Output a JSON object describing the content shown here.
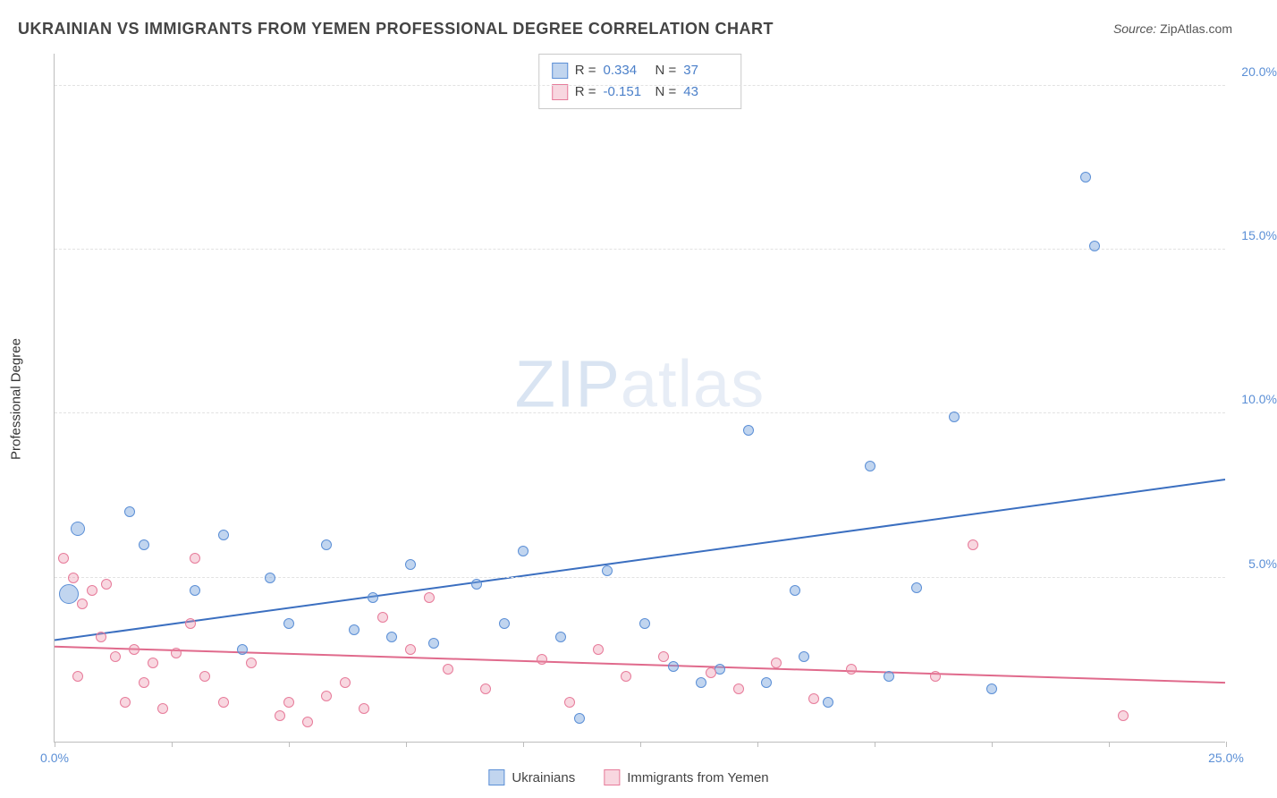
{
  "title": "UKRAINIAN VS IMMIGRANTS FROM YEMEN PROFESSIONAL DEGREE CORRELATION CHART",
  "source_label": "Source:",
  "source_value": "ZipAtlas.com",
  "ylabel": "Professional Degree",
  "watermark_a": "ZIP",
  "watermark_b": "atlas",
  "chart": {
    "type": "scatter",
    "xlim": [
      0,
      25
    ],
    "ylim": [
      0,
      21
    ],
    "yticks": [
      5,
      10,
      15,
      20
    ],
    "ytick_labels": [
      "5.0%",
      "10.0%",
      "15.0%",
      "20.0%"
    ],
    "xticks": [
      0,
      2.5,
      5,
      7.5,
      10,
      12.5,
      15,
      17.5,
      20,
      22.5,
      25
    ],
    "xtick_labels": {
      "0": "0.0%",
      "25": "25.0%"
    },
    "series": [
      {
        "name": "Ukrainians",
        "color_key": "blue",
        "r_label": "R =",
        "r_value": "0.334",
        "n_label": "N =",
        "n_value": "37",
        "trend": {
          "y0": 3.1,
          "y1": 8.0,
          "stroke": "#3b6fc0",
          "width": 2
        },
        "points": [
          {
            "x": 0.3,
            "y": 4.5,
            "s": 22
          },
          {
            "x": 0.5,
            "y": 6.5,
            "s": 16
          },
          {
            "x": 1.6,
            "y": 7.0,
            "s": 12
          },
          {
            "x": 1.9,
            "y": 6.0,
            "s": 12
          },
          {
            "x": 3.6,
            "y": 6.3,
            "s": 12
          },
          {
            "x": 3.0,
            "y": 4.6,
            "s": 12
          },
          {
            "x": 4.6,
            "y": 5.0,
            "s": 12
          },
          {
            "x": 5.0,
            "y": 3.6,
            "s": 12
          },
          {
            "x": 5.8,
            "y": 6.0,
            "s": 12
          },
          {
            "x": 6.4,
            "y": 3.4,
            "s": 12
          },
          {
            "x": 6.8,
            "y": 4.4,
            "s": 12
          },
          {
            "x": 7.2,
            "y": 3.2,
            "s": 12
          },
          {
            "x": 7.6,
            "y": 5.4,
            "s": 12
          },
          {
            "x": 8.1,
            "y": 3.0,
            "s": 12
          },
          {
            "x": 9.0,
            "y": 4.8,
            "s": 12
          },
          {
            "x": 9.6,
            "y": 3.6,
            "s": 12
          },
          {
            "x": 10.0,
            "y": 5.8,
            "s": 12
          },
          {
            "x": 10.8,
            "y": 3.2,
            "s": 12
          },
          {
            "x": 11.2,
            "y": 0.7,
            "s": 12
          },
          {
            "x": 11.8,
            "y": 5.2,
            "s": 12
          },
          {
            "x": 12.6,
            "y": 3.6,
            "s": 12
          },
          {
            "x": 13.2,
            "y": 2.3,
            "s": 12
          },
          {
            "x": 13.8,
            "y": 1.8,
            "s": 12
          },
          {
            "x": 14.2,
            "y": 2.2,
            "s": 12
          },
          {
            "x": 14.8,
            "y": 9.5,
            "s": 12
          },
          {
            "x": 15.2,
            "y": 1.8,
            "s": 12
          },
          {
            "x": 15.8,
            "y": 4.6,
            "s": 12
          },
          {
            "x": 16.5,
            "y": 1.2,
            "s": 12
          },
          {
            "x": 17.4,
            "y": 8.4,
            "s": 12
          },
          {
            "x": 17.8,
            "y": 2.0,
            "s": 12
          },
          {
            "x": 18.4,
            "y": 4.7,
            "s": 12
          },
          {
            "x": 19.2,
            "y": 9.9,
            "s": 12
          },
          {
            "x": 20.0,
            "y": 1.6,
            "s": 12
          },
          {
            "x": 22.0,
            "y": 17.2,
            "s": 12
          },
          {
            "x": 22.2,
            "y": 15.1,
            "s": 12
          },
          {
            "x": 16.0,
            "y": 2.6,
            "s": 12
          },
          {
            "x": 4.0,
            "y": 2.8,
            "s": 12
          }
        ]
      },
      {
        "name": "Immigrants from Yemen",
        "color_key": "pink",
        "r_label": "R =",
        "r_value": "-0.151",
        "n_label": "N =",
        "n_value": "43",
        "trend": {
          "y0": 2.9,
          "y1": 1.8,
          "stroke": "#e06a8c",
          "width": 2
        },
        "points": [
          {
            "x": 0.2,
            "y": 5.6,
            "s": 12
          },
          {
            "x": 0.4,
            "y": 5.0,
            "s": 12
          },
          {
            "x": 0.6,
            "y": 4.2,
            "s": 12
          },
          {
            "x": 0.8,
            "y": 4.6,
            "s": 12
          },
          {
            "x": 1.0,
            "y": 3.2,
            "s": 12
          },
          {
            "x": 1.1,
            "y": 4.8,
            "s": 12
          },
          {
            "x": 1.3,
            "y": 2.6,
            "s": 12
          },
          {
            "x": 1.5,
            "y": 1.2,
            "s": 12
          },
          {
            "x": 1.7,
            "y": 2.8,
            "s": 12
          },
          {
            "x": 1.9,
            "y": 1.8,
            "s": 12
          },
          {
            "x": 2.1,
            "y": 2.4,
            "s": 12
          },
          {
            "x": 2.3,
            "y": 1.0,
            "s": 12
          },
          {
            "x": 2.6,
            "y": 2.7,
            "s": 12
          },
          {
            "x": 3.0,
            "y": 5.6,
            "s": 12
          },
          {
            "x": 3.2,
            "y": 2.0,
            "s": 12
          },
          {
            "x": 3.6,
            "y": 1.2,
            "s": 12
          },
          {
            "x": 4.2,
            "y": 2.4,
            "s": 12
          },
          {
            "x": 4.8,
            "y": 0.8,
            "s": 12
          },
          {
            "x": 5.0,
            "y": 1.2,
            "s": 12
          },
          {
            "x": 5.4,
            "y": 0.6,
            "s": 12
          },
          {
            "x": 5.8,
            "y": 1.4,
            "s": 12
          },
          {
            "x": 6.2,
            "y": 1.8,
            "s": 12
          },
          {
            "x": 6.6,
            "y": 1.0,
            "s": 12
          },
          {
            "x": 7.0,
            "y": 3.8,
            "s": 12
          },
          {
            "x": 7.6,
            "y": 2.8,
            "s": 12
          },
          {
            "x": 8.0,
            "y": 4.4,
            "s": 12
          },
          {
            "x": 8.4,
            "y": 2.2,
            "s": 12
          },
          {
            "x": 9.2,
            "y": 1.6,
            "s": 12
          },
          {
            "x": 10.4,
            "y": 2.5,
            "s": 12
          },
          {
            "x": 11.0,
            "y": 1.2,
            "s": 12
          },
          {
            "x": 11.6,
            "y": 2.8,
            "s": 12
          },
          {
            "x": 12.2,
            "y": 2.0,
            "s": 12
          },
          {
            "x": 13.0,
            "y": 2.6,
            "s": 12
          },
          {
            "x": 14.0,
            "y": 2.1,
            "s": 12
          },
          {
            "x": 14.6,
            "y": 1.6,
            "s": 12
          },
          {
            "x": 15.4,
            "y": 2.4,
            "s": 12
          },
          {
            "x": 16.2,
            "y": 1.3,
            "s": 12
          },
          {
            "x": 17.0,
            "y": 2.2,
            "s": 12
          },
          {
            "x": 18.8,
            "y": 2.0,
            "s": 12
          },
          {
            "x": 19.6,
            "y": 6.0,
            "s": 12
          },
          {
            "x": 22.8,
            "y": 0.8,
            "s": 12
          },
          {
            "x": 2.9,
            "y": 3.6,
            "s": 12
          },
          {
            "x": 0.5,
            "y": 2.0,
            "s": 12
          }
        ]
      }
    ]
  },
  "colors": {
    "blue_fill": "rgba(117,162,219,0.45)",
    "blue_stroke": "#5b8fd6",
    "pink_fill": "rgba(236,140,165,0.35)",
    "pink_stroke": "#e77b9a",
    "grid": "#e2e2e2",
    "axis": "#bdbdbd",
    "tick_text": "#5b8fd6",
    "title_text": "#444444"
  }
}
